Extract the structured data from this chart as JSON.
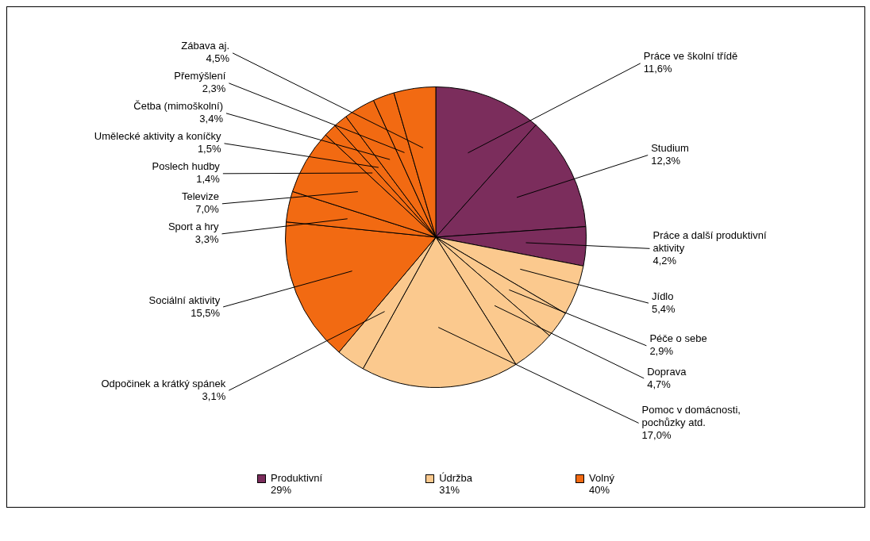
{
  "chart_data": {
    "type": "pie",
    "categories": [
      "Práce ve školní třídě",
      "Studium",
      "Práce a další produktivní\naktivity",
      "Jídlo",
      "Péče o sebe",
      "Doprava",
      "Pomoc v domácnosti,\npochůzky atd.",
      "Odpočinek a krátký spánek",
      "Sociální aktivity",
      "Sport a hry",
      "Televize",
      "Poslech hudby",
      "Umělecké aktivity a koníčky",
      "Četba (mimoškolní)",
      "Přemýšlení",
      "Zábava aj."
    ],
    "values": [
      11.6,
      12.3,
      4.2,
      5.4,
      2.9,
      4.7,
      17.0,
      3.1,
      15.5,
      3.3,
      7.0,
      1.4,
      1.5,
      3.4,
      2.3,
      4.5
    ],
    "colors": [
      "#7b2d5c",
      "#7b2d5c",
      "#7b2d5c",
      "#fbc98e",
      "#fbc98e",
      "#fbc98e",
      "#fbc98e",
      "#fbc98e",
      "#f26a12",
      "#f26a12",
      "#f26a12",
      "#f26a12",
      "#f26a12",
      "#f26a12",
      "#f26a12",
      "#f26a12"
    ],
    "value_labels": [
      "11,6%",
      "12,3%",
      "4,2%",
      "5,4%",
      "2,9%",
      "4,7%",
      "17,0%",
      "3,1%",
      "15,5%",
      "3,3%",
      "7,0%",
      "1,4%",
      "1,5%",
      "3,4%",
      "2,3%",
      "4,5%"
    ],
    "annotations": [
      "Produktivní\n29%",
      "Údržba\n31%",
      "Volný\n40%"
    ]
  }
}
